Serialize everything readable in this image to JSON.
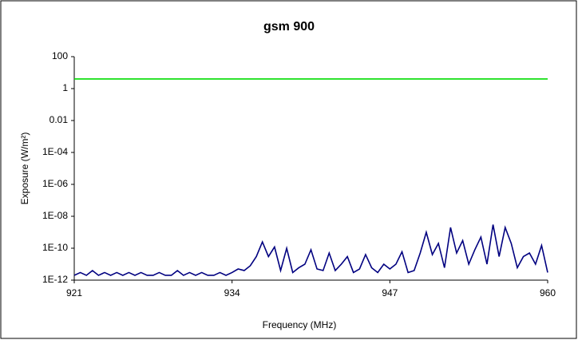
{
  "chart_data": {
    "type": "line",
    "title": "gsm 900",
    "x_label": "Frequency (MHz)",
    "y_label": "Exposure (W/m²)",
    "log_y": true,
    "xlim": [
      921,
      960
    ],
    "xticks": [
      921,
      934,
      947,
      960
    ],
    "ylim": [
      1e-12,
      100
    ],
    "yticks": [
      100,
      1,
      0.01,
      {
        "value": 0.0001,
        "label": "1E-04"
      },
      {
        "value": 1e-06,
        "label": "1E-06"
      },
      {
        "value": 1e-08,
        "label": "1E-08"
      },
      {
        "value": 1e-10,
        "label": "1E-10"
      },
      {
        "value": 1e-12,
        "label": "1E-12"
      }
    ],
    "series": [
      {
        "color": "#00dd00",
        "x": [
          921,
          960
        ],
        "values": [
          4,
          4
        ]
      },
      {
        "color": "#000080",
        "x": [
          921,
          921.5,
          922,
          922.5,
          923,
          923.5,
          924,
          924.5,
          925,
          925.5,
          926,
          926.5,
          927,
          927.5,
          928,
          928.5,
          929,
          929.5,
          930,
          930.5,
          931,
          931.5,
          932,
          932.5,
          933,
          933.5,
          934,
          934.5,
          935,
          935.5,
          936,
          936.5,
          937,
          937.5,
          938,
          938.5,
          939,
          939.5,
          940,
          940.5,
          941,
          941.5,
          942,
          942.5,
          943,
          943.5,
          944,
          944.5,
          945,
          945.5,
          946,
          946.5,
          947,
          947.5,
          948,
          948.5,
          949,
          949.5,
          950,
          950.5,
          951,
          951.5,
          952,
          952.5,
          953,
          953.5,
          954,
          954.5,
          955,
          955.5,
          956,
          956.5,
          957,
          957.5,
          958,
          958.5,
          959,
          959.5,
          960
        ],
        "values": [
          2e-12,
          3e-12,
          2e-12,
          4e-12,
          2e-12,
          3e-12,
          2e-12,
          3e-12,
          2e-12,
          3e-12,
          2e-12,
          3e-12,
          2e-12,
          2e-12,
          3e-12,
          2e-12,
          2e-12,
          4e-12,
          2e-12,
          3e-12,
          2e-12,
          3e-12,
          2e-12,
          2e-12,
          3e-12,
          2e-12,
          3e-12,
          5e-12,
          4e-12,
          8e-12,
          3e-11,
          2.5e-10,
          3e-11,
          1.2e-10,
          4e-12,
          1e-10,
          3e-12,
          6e-12,
          1e-11,
          8e-11,
          5e-12,
          4e-12,
          5e-11,
          4e-12,
          1e-11,
          3e-11,
          3e-12,
          5e-12,
          4e-11,
          6e-12,
          3e-12,
          1e-11,
          5e-12,
          1e-11,
          6e-11,
          3e-12,
          4e-12,
          5e-11,
          1e-09,
          4e-11,
          2e-10,
          6e-12,
          2e-09,
          5e-11,
          3e-10,
          1e-11,
          8e-11,
          5e-10,
          1e-11,
          3e-09,
          3e-11,
          2e-09,
          2e-10,
          6e-12,
          3e-11,
          5e-11,
          1e-11,
          1.5e-10,
          3e-12
        ]
      }
    ]
  }
}
